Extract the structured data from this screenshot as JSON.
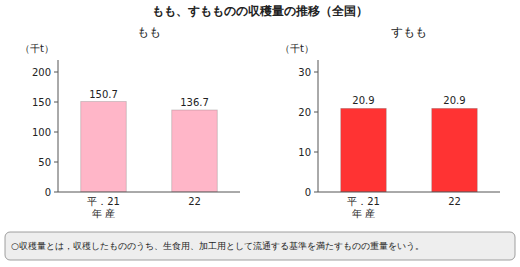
{
  "title": "もも、すもものの収穫量の推移（全国）",
  "annotations": [
    "○収穫量とは，収穫したもののうち、生食用、加工用として流通する基準を満たすものの重量をいう。"
  ],
  "chart_data": [
    {
      "type": "bar",
      "title": "もも",
      "ylabel": "（千t）",
      "categories": [
        "平．21\n年 産",
        "22"
      ],
      "values": [
        150.7,
        136.7
      ],
      "color": "#FFB6C8",
      "ylim": [
        0,
        220
      ],
      "yticks": [
        0,
        50,
        100,
        150,
        200
      ],
      "grid": false,
      "data_labels": true
    },
    {
      "type": "bar",
      "title": "すもも",
      "ylabel": "（千t）",
      "categories": [
        "平．21\n年 産",
        "22"
      ],
      "values": [
        20.9,
        20.9
      ],
      "color": "#FF3333",
      "ylim": [
        0,
        33
      ],
      "yticks": [
        0,
        10,
        20,
        30
      ],
      "grid": false,
      "data_labels": true
    }
  ]
}
